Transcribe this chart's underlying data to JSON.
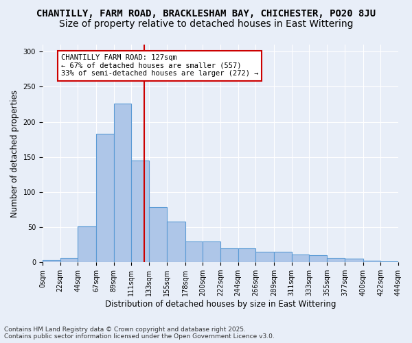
{
  "title_line1": "CHANTILLY, FARM ROAD, BRACKLESHAM BAY, CHICHESTER, PO20 8JU",
  "title_line2": "Size of property relative to detached houses in East Wittering",
  "xlabel": "Distribution of detached houses by size in East Wittering",
  "ylabel": "Number of detached properties",
  "bar_color": "#aec6e8",
  "bar_edge_color": "#5b9bd5",
  "background_color": "#e8eef8",
  "grid_color": "#ffffff",
  "bins": [
    0,
    22,
    44,
    67,
    89,
    111,
    133,
    155,
    178,
    200,
    222,
    244,
    266,
    289,
    311,
    333,
    355,
    377,
    400,
    422,
    444
  ],
  "bin_labels": [
    "0sqm",
    "22sqm",
    "44sqm",
    "67sqm",
    "89sqm",
    "111sqm",
    "133sqm",
    "155sqm",
    "178sqm",
    "200sqm",
    "222sqm",
    "244sqm",
    "266sqm",
    "289sqm",
    "311sqm",
    "333sqm",
    "355sqm",
    "377sqm",
    "400sqm",
    "422sqm",
    "444sqm"
  ],
  "values": [
    3,
    6,
    51,
    183,
    226,
    145,
    78,
    58,
    30,
    30,
    20,
    20,
    15,
    15,
    11,
    10,
    6,
    5,
    2,
    1
  ],
  "vline_x": 127,
  "vline_color": "#cc0000",
  "annotation_text": "CHANTILLY FARM ROAD: 127sqm\n← 67% of detached houses are smaller (557)\n33% of semi-detached houses are larger (272) →",
  "annotation_box_color": "#ffffff",
  "annotation_box_edge_color": "#cc0000",
  "ylim": [
    0,
    310
  ],
  "yticks": [
    0,
    50,
    100,
    150,
    200,
    250,
    300
  ],
  "footer_text": "Contains HM Land Registry data © Crown copyright and database right 2025.\nContains public sector information licensed under the Open Government Licence v3.0.",
  "title_fontsize": 10,
  "subtitle_fontsize": 10,
  "axis_label_fontsize": 8.5,
  "tick_fontsize": 7,
  "annotation_fontsize": 7.5,
  "footer_fontsize": 6.5
}
